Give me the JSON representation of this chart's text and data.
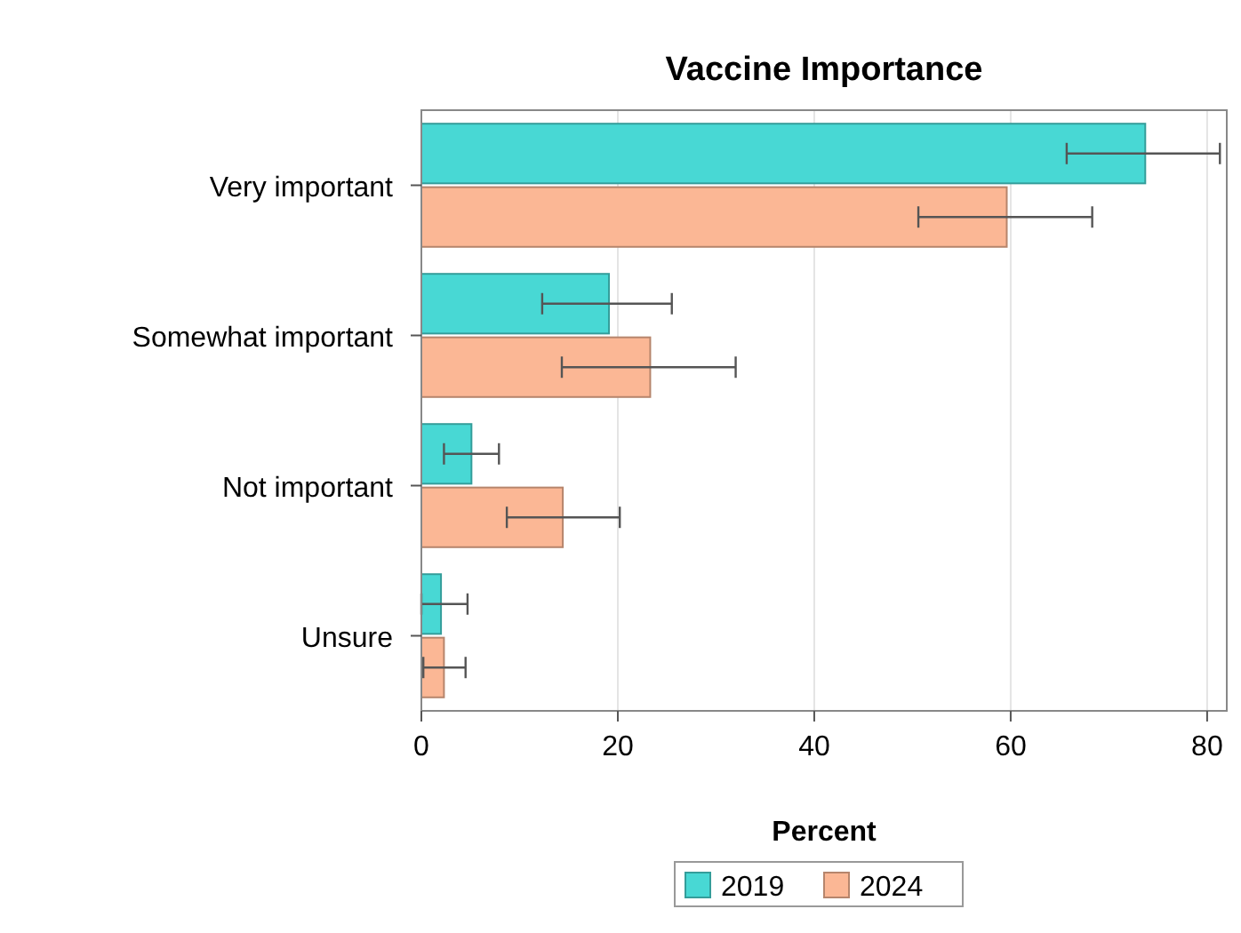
{
  "chart_data": {
    "type": "bar",
    "orientation": "horizontal",
    "title": "Vaccine Importance",
    "xlabel": "Percent",
    "categories": [
      "Very important",
      "Somewhat important",
      "Not important",
      "Unsure"
    ],
    "series": [
      {
        "name": "2019",
        "color": "#48d8d4",
        "values": [
          73.7,
          19.1,
          5.1,
          2.0
        ],
        "errors": [
          [
            65.7,
            81.3
          ],
          [
            12.3,
            25.5
          ],
          [
            2.3,
            7.9
          ],
          [
            0,
            4.7
          ]
        ]
      },
      {
        "name": "2024",
        "color": "#fbb795",
        "values": [
          59.6,
          23.3,
          14.4,
          2.3
        ],
        "errors": [
          [
            50.6,
            68.3
          ],
          [
            14.3,
            32.0
          ],
          [
            8.7,
            20.2
          ],
          [
            0.2,
            4.5
          ]
        ]
      }
    ],
    "xlim": [
      0,
      82
    ],
    "xticks": [
      0,
      20,
      40,
      60,
      80
    ],
    "grid": "x",
    "legend": "bottom"
  }
}
